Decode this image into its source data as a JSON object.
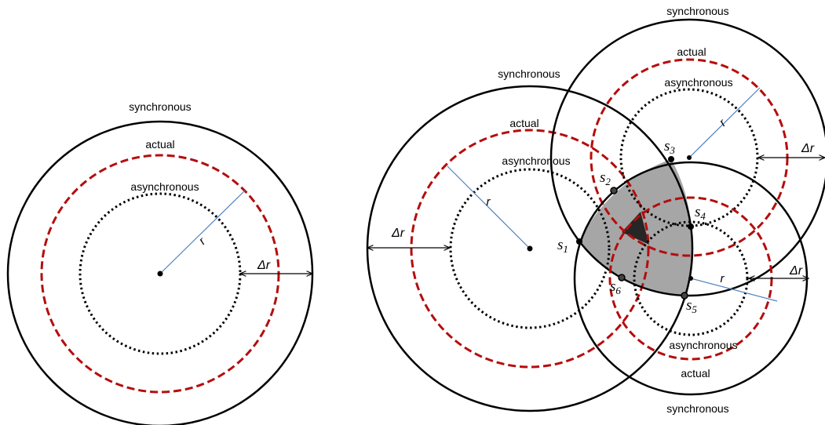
{
  "left_figure": {
    "label_synchronous": "synchronous",
    "label_actual": "actual",
    "label_asynchronous": "asynchronous",
    "label_r": "r",
    "label_delta_r": "Δr"
  },
  "right_figure": {
    "circle_a": {
      "label_synchronous": "synchronous",
      "label_actual": "actual",
      "label_asynchronous": "asynchronous",
      "label_r": "r",
      "label_delta_r": "Δr"
    },
    "circle_b": {
      "label_synchronous": "synchronous",
      "label_actual": "actual",
      "label_asynchronous": "asynchronous",
      "label_r": "r",
      "label_delta_r": "Δr"
    },
    "circle_c": {
      "label_synchronous": "synchronous",
      "label_actual": "actual",
      "label_asynchronous": "asynchronous",
      "label_r": "r",
      "label_delta_r": "Δr"
    },
    "points": [
      {
        "letter": "s",
        "sub": "1"
      },
      {
        "letter": "s",
        "sub": "2"
      },
      {
        "letter": "s",
        "sub": "3"
      },
      {
        "letter": "s",
        "sub": "4"
      },
      {
        "letter": "s",
        "sub": "5"
      },
      {
        "letter": "s",
        "sub": "6"
      }
    ]
  },
  "colors": {
    "synchronous_stroke": "#000000",
    "actual_stroke": "#b50d0d",
    "asynchronous_stroke": "#000000",
    "radius_line": "#4f81bd",
    "region_fill": "#a6a6a6",
    "core_fill": "#262626"
  }
}
